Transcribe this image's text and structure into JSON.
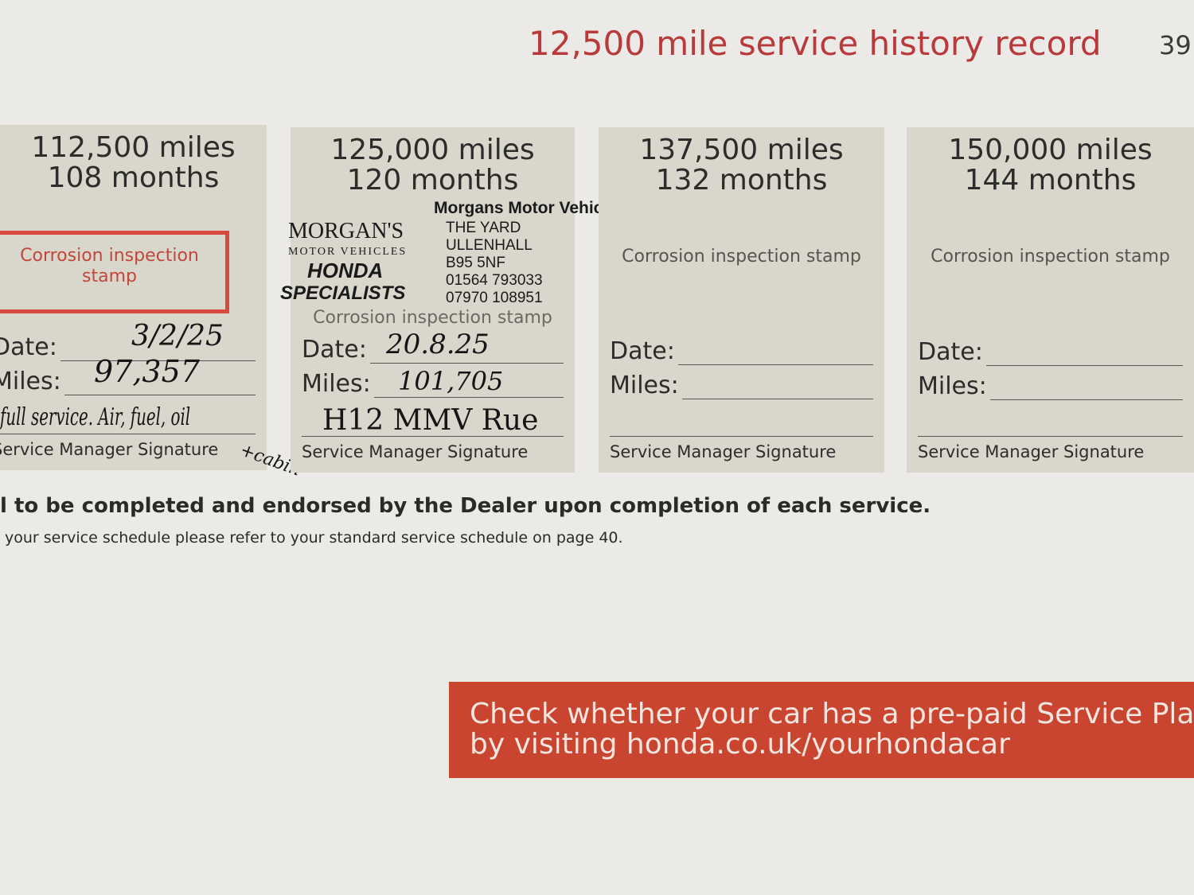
{
  "page": {
    "title": "12,500 mile service history record",
    "page_number": "39"
  },
  "cards": [
    {
      "miles": "112,500 miles",
      "months": "108 months",
      "stamp_text": "Corrosion inspection stamp",
      "date_label": "Date:",
      "miles_label": "Miles:",
      "signature_label": "Service Manager Signature",
      "hand_date": "3/2/25",
      "hand_miles": "97,357",
      "hand_notes": "full service. Air, fuel, oil",
      "hand_extra": "+cabin"
    },
    {
      "miles": "125,000 miles",
      "months": "120 months",
      "stamp_text": "Corrosion inspection stamp",
      "date_label": "Date:",
      "miles_label": "Miles:",
      "signature_label": "Service Manager Signature",
      "hand_date": "20.8.25",
      "hand_miles": "101,705",
      "hand_notes": "H12 MMV Rue",
      "dealer_stamp": {
        "name": "Morgans Motor Vehicles",
        "logo_line1": "MORGAN'S",
        "logo_line2": "MOTOR VEHICLES",
        "logo_line3": "HONDA",
        "logo_line4": "SPECIALISTS",
        "address": [
          "THE YARD",
          "ULLENHALL",
          "B95 5NF",
          "01564 793033",
          "07970 108951"
        ]
      }
    },
    {
      "miles": "137,500 miles",
      "months": "132 months",
      "stamp_text": "Corrosion inspection stamp",
      "date_label": "Date:",
      "miles_label": "Miles:",
      "signature_label": "Service Manager Signature"
    },
    {
      "miles": "150,000 miles",
      "months": "144 months",
      "stamp_text": "Corrosion inspection stamp",
      "date_label": "Date:",
      "miles_label": "Miles:",
      "signature_label": "Service Manager Signature"
    }
  ],
  "footer": {
    "note": "l to be completed and endorsed by the Dealer upon completion of each service.",
    "subnote": "your service schedule please refer to your standard service schedule on page 40."
  },
  "banner": {
    "line1": "Check whether your car has a pre-paid Service Plan",
    "line2": "by visiting honda.co.uk/yourhondacar",
    "color": "#c9452f"
  },
  "colors": {
    "title": "#b83a3c",
    "card": "#d9d6cc",
    "paper": "#eceae6"
  }
}
